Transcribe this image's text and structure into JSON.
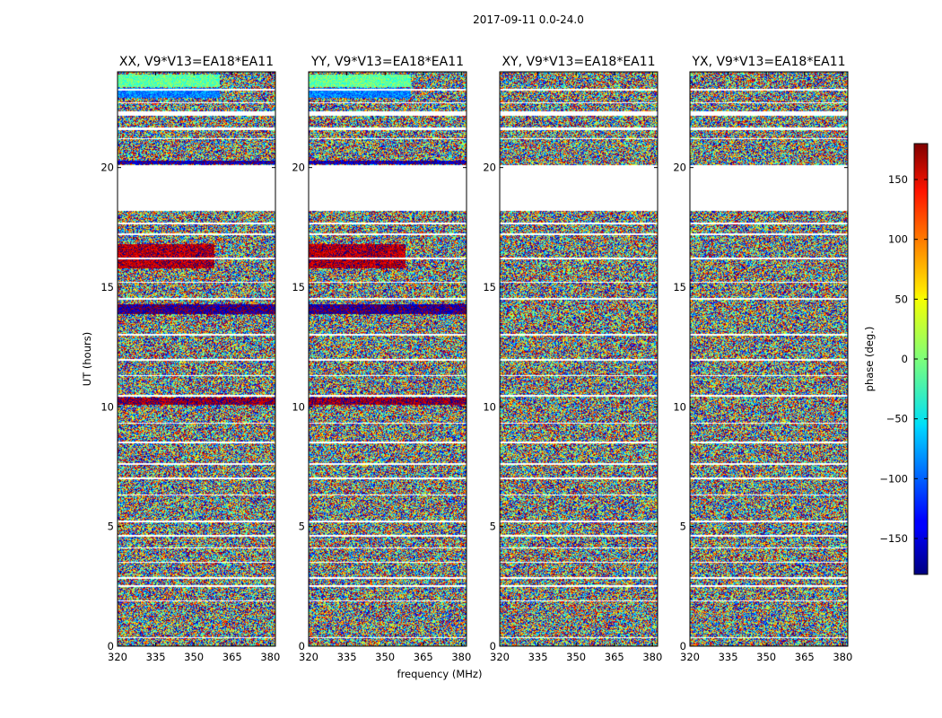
{
  "chart_data": {
    "type": "heatmap",
    "suptitle": "2017-09-11 0.0-24.0",
    "xlabel": "frequency (MHz)",
    "ylabel": "UT (hours)",
    "xlim": [
      320,
      382
    ],
    "ylim": [
      0,
      24
    ],
    "xticks": [
      320,
      335,
      350,
      365,
      380
    ],
    "yticks": [
      0,
      5,
      10,
      15,
      20
    ],
    "colormap": "jet",
    "colorbar": {
      "label": "phase (deg.)",
      "range": [
        -180,
        180
      ],
      "ticks": [
        -150,
        -100,
        -50,
        0,
        50,
        100,
        150
      ],
      "tick_labels": [
        "−150",
        "−100",
        "−50",
        "0",
        "50",
        "100",
        "150"
      ]
    },
    "panels": [
      {
        "title": "XX, V9*V13=EA18*EA11",
        "pol": "XX",
        "biased": true
      },
      {
        "title": "YY, V9*V13=EA18*EA11",
        "pol": "YY",
        "biased": true
      },
      {
        "title": "XY, V9*V13=EA18*EA11",
        "pol": "XY",
        "biased": false
      },
      {
        "title": "YX, V9*V13=EA18*EA11",
        "pol": "YX",
        "biased": false
      }
    ],
    "flagged_ut_ranges": [
      [
        18.2,
        20.1
      ],
      [
        22.2,
        22.35
      ],
      [
        21.6,
        21.7
      ]
    ],
    "gap_ut_ranges": [
      [
        0.35,
        0.4
      ],
      [
        0.9,
        0.93
      ],
      [
        1.9,
        1.95
      ],
      [
        2.5,
        2.55
      ],
      [
        2.85,
        2.9
      ],
      [
        3.5,
        3.55
      ],
      [
        4.1,
        4.15
      ],
      [
        4.6,
        4.65
      ],
      [
        5.2,
        5.25
      ],
      [
        6.3,
        6.35
      ],
      [
        7.0,
        7.05
      ],
      [
        7.6,
        7.65
      ],
      [
        8.5,
        8.55
      ],
      [
        9.3,
        9.35
      ],
      [
        10.45,
        10.5
      ],
      [
        11.3,
        11.35
      ],
      [
        11.95,
        12.0
      ],
      [
        13.0,
        13.05
      ],
      [
        14.5,
        14.55
      ],
      [
        15.2,
        15.25
      ],
      [
        16.2,
        16.25
      ],
      [
        17.2,
        17.25
      ],
      [
        17.65,
        17.7
      ],
      [
        19.0,
        19.05
      ],
      [
        21.2,
        21.25
      ],
      [
        22.7,
        22.75
      ],
      [
        23.25,
        23.3
      ]
    ],
    "colored_bands": [
      {
        "ut": [
          23.4,
          23.9
        ],
        "phase_deg": -10,
        "panels": [
          "XX",
          "YY"
        ],
        "freq": [
          320,
          360
        ]
      },
      {
        "ut": [
          22.95,
          23.35
        ],
        "phase_deg": -90,
        "panels": [
          "XX",
          "YY"
        ],
        "freq": [
          320,
          360
        ]
      },
      {
        "ut": [
          20.15,
          20.3
        ],
        "phase_deg": -160,
        "panels": [
          "XX",
          "YY"
        ],
        "freq": [
          320,
          382
        ]
      },
      {
        "ut": [
          15.8,
          16.8
        ],
        "phase_deg": 160,
        "panels": [
          "XX",
          "YY"
        ],
        "freq": [
          320,
          358
        ]
      },
      {
        "ut": [
          10.1,
          10.4
        ],
        "phase_deg": 170,
        "panels": [
          "XX",
          "YY"
        ],
        "freq": [
          320,
          382
        ]
      },
      {
        "ut": [
          13.9,
          14.3
        ],
        "phase_deg": -170,
        "panels": [
          "XX",
          "YY"
        ],
        "freq": [
          320,
          382
        ]
      }
    ]
  }
}
